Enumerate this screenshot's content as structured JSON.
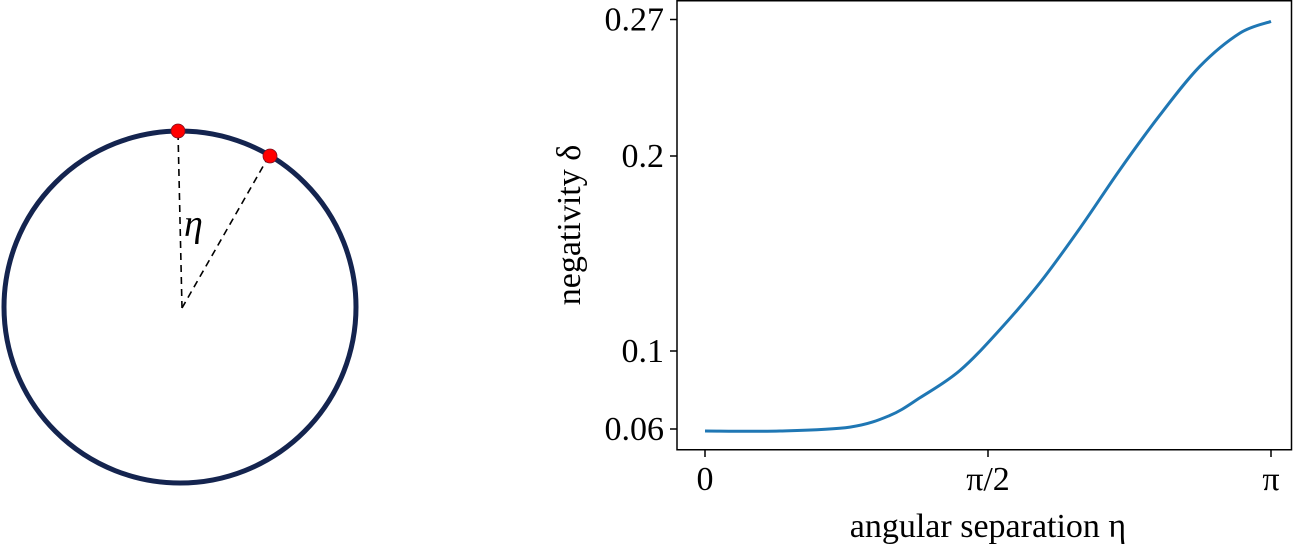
{
  "diagram": {
    "angle_label": "η",
    "circle_color": "#14244f",
    "point_color": "#ff0000",
    "points": [
      {
        "name": "point-a",
        "angle_deg": 0
      },
      {
        "name": "point-b",
        "angle_deg": 30
      }
    ]
  },
  "chart_data": {
    "type": "line",
    "title": "",
    "xlabel": "angular separation η",
    "ylabel": "negativity δ",
    "xlim": [
      0,
      3.14159
    ],
    "ylim": [
      0.0495,
      0.2795
    ],
    "xticks": [
      {
        "value": 0,
        "label": "0"
      },
      {
        "value": 1.5708,
        "label": "π/2"
      },
      {
        "value": 3.14159,
        "label": "π"
      }
    ],
    "yticks": [
      {
        "value": 0.06,
        "label": "0.06"
      },
      {
        "value": 0.1,
        "label": "0.1"
      },
      {
        "value": 0.2,
        "label": "0.2"
      },
      {
        "value": 0.27,
        "label": "0.27"
      }
    ],
    "grid": false,
    "legend": null,
    "series": [
      {
        "name": "negativity",
        "color": "#1f77b4",
        "x": [
          0.0,
          0.416,
          0.805,
          1.027,
          1.193,
          1.415,
          1.637,
          1.859,
          2.081,
          2.303,
          2.525,
          2.747,
          2.969,
          3.14159
        ],
        "values": [
          0.059,
          0.059,
          0.061,
          0.067,
          0.076,
          0.09,
          0.111,
          0.135,
          0.163,
          0.193,
          0.221,
          0.246,
          0.263,
          0.269
        ]
      }
    ]
  }
}
